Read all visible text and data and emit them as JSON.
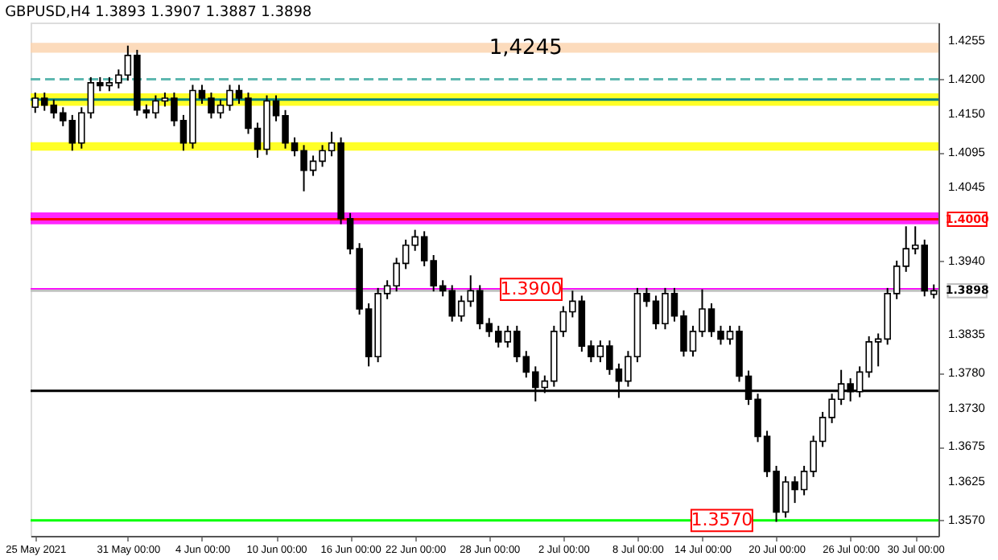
{
  "chart_data": {
    "type": "candlestick",
    "title": "GBPUSD,H4  1.3893 1.3907 1.3887 1.3898",
    "categories": [
      "25 May 2021",
      null,
      null,
      null,
      null,
      null,
      null,
      null,
      null,
      null,
      "31 May 00:00",
      null,
      null,
      null,
      null,
      null,
      null,
      null,
      "4 Jun 00:00",
      null,
      null,
      null,
      null,
      null,
      null,
      null,
      "10 Jun 00:00",
      null,
      null,
      null,
      null,
      null,
      null,
      null,
      "16 Jun 00:00",
      null,
      null,
      null,
      null,
      null,
      null,
      "22 Jun 00:00",
      null,
      null,
      null,
      null,
      null,
      null,
      null,
      "28 Jun 00:00",
      null,
      null,
      null,
      null,
      null,
      null,
      null,
      "2 Jul 00:00",
      null,
      null,
      null,
      null,
      null,
      null,
      null,
      "8 Jul 00:00",
      null,
      null,
      null,
      null,
      null,
      null,
      "14 Jul 00:00",
      null,
      null,
      null,
      null,
      null,
      null,
      null,
      "20 Jul 00:00",
      null,
      null,
      null,
      null,
      null,
      null,
      null,
      "26 Jul 00:00",
      null,
      null,
      null,
      null,
      null,
      null,
      "30 Jul 00:00",
      null,
      null
    ],
    "ohlc": [
      [
        1.416,
        1.4181,
        1.4152,
        1.4173
      ],
      [
        1.4173,
        1.4181,
        1.4155,
        1.4163
      ],
      [
        1.4163,
        1.4171,
        1.4144,
        1.4152
      ],
      [
        1.4152,
        1.416,
        1.4133,
        1.4141
      ],
      [
        1.4141,
        1.4149,
        1.4098,
        1.4109
      ],
      [
        1.4109,
        1.416,
        1.4101,
        1.4152
      ],
      [
        1.4152,
        1.4203,
        1.4144,
        1.4195
      ],
      [
        1.4195,
        1.4203,
        1.4183,
        1.4191
      ],
      [
        1.4191,
        1.4203,
        1.4183,
        1.4195
      ],
      [
        1.4195,
        1.4214,
        1.4187,
        1.4206
      ],
      [
        1.4206,
        1.4248,
        1.4198,
        1.4234
      ],
      [
        1.4234,
        1.4242,
        1.4148,
        1.4156
      ],
      [
        1.4156,
        1.4164,
        1.4144,
        1.4152
      ],
      [
        1.4152,
        1.4177,
        1.4144,
        1.4169
      ],
      [
        1.4169,
        1.4181,
        1.4161,
        1.4173
      ],
      [
        1.4173,
        1.4181,
        1.4133,
        1.4141
      ],
      [
        1.4141,
        1.4149,
        1.4098,
        1.4109
      ],
      [
        1.4109,
        1.4192,
        1.4101,
        1.4184
      ],
      [
        1.4184,
        1.4192,
        1.4165,
        1.4173
      ],
      [
        1.4173,
        1.4181,
        1.4144,
        1.4152
      ],
      [
        1.4152,
        1.4171,
        1.4144,
        1.4163
      ],
      [
        1.4163,
        1.4192,
        1.4155,
        1.4184
      ],
      [
        1.4184,
        1.4192,
        1.4165,
        1.4173
      ],
      [
        1.4173,
        1.4181,
        1.4122,
        1.413
      ],
      [
        1.413,
        1.4138,
        1.4088,
        1.41
      ],
      [
        1.41,
        1.4177,
        1.4092,
        1.4169
      ],
      [
        1.4169,
        1.4177,
        1.414,
        1.4148
      ],
      [
        1.4148,
        1.4156,
        1.4101,
        1.4109
      ],
      [
        1.4109,
        1.4117,
        1.409,
        1.4098
      ],
      [
        1.4098,
        1.4106,
        1.404,
        1.407
      ],
      [
        1.407,
        1.4091,
        1.4062,
        1.4083
      ],
      [
        1.4083,
        1.4106,
        1.4075,
        1.4098
      ],
      [
        1.4098,
        1.4125,
        1.409,
        1.4109
      ],
      [
        1.4109,
        1.4117,
        1.3993,
        1.4001
      ],
      [
        1.4001,
        1.4009,
        1.395,
        1.3958
      ],
      [
        1.3958,
        1.3966,
        1.3864,
        1.3872
      ],
      [
        1.3872,
        1.388,
        1.379,
        1.3804
      ],
      [
        1.3804,
        1.3902,
        1.3796,
        1.3894
      ],
      [
        1.3894,
        1.3913,
        1.3886,
        1.3905
      ],
      [
        1.3905,
        1.3945,
        1.3897,
        1.3937
      ],
      [
        1.3937,
        1.3971,
        1.3929,
        1.3963
      ],
      [
        1.3963,
        1.3985,
        1.3955,
        1.3975
      ],
      [
        1.3975,
        1.3983,
        1.3933,
        1.3941
      ],
      [
        1.3941,
        1.3949,
        1.3897,
        1.3905
      ],
      [
        1.3905,
        1.3913,
        1.389,
        1.3898
      ],
      [
        1.3898,
        1.3906,
        1.3854,
        1.3862
      ],
      [
        1.3862,
        1.3891,
        1.3854,
        1.3883
      ],
      [
        1.3883,
        1.392,
        1.3875,
        1.3898
      ],
      [
        1.3898,
        1.3906,
        1.3843,
        1.3851
      ],
      [
        1.3851,
        1.3859,
        1.3832,
        1.384
      ],
      [
        1.384,
        1.3848,
        1.3817,
        1.3825
      ],
      [
        1.3825,
        1.3848,
        1.3817,
        1.384
      ],
      [
        1.384,
        1.3848,
        1.3796,
        1.3804
      ],
      [
        1.3804,
        1.3812,
        1.3774,
        1.3782
      ],
      [
        1.3782,
        1.379,
        1.374,
        1.376
      ],
      [
        1.376,
        1.3777,
        1.3752,
        1.3769
      ],
      [
        1.3769,
        1.3848,
        1.3761,
        1.384
      ],
      [
        1.384,
        1.3876,
        1.3832,
        1.3868
      ],
      [
        1.3868,
        1.3898,
        1.386,
        1.3883
      ],
      [
        1.3883,
        1.3891,
        1.3811,
        1.3819
      ],
      [
        1.3819,
        1.3827,
        1.3796,
        1.3804
      ],
      [
        1.3804,
        1.3827,
        1.3796,
        1.3819
      ],
      [
        1.3819,
        1.3827,
        1.3778,
        1.3786
      ],
      [
        1.3786,
        1.3794,
        1.3745,
        1.3769
      ],
      [
        1.3769,
        1.3812,
        1.3761,
        1.3804
      ],
      [
        1.3804,
        1.3902,
        1.3796,
        1.3894
      ],
      [
        1.3894,
        1.3902,
        1.3875,
        1.3883
      ],
      [
        1.3883,
        1.3891,
        1.3843,
        1.3851
      ],
      [
        1.3851,
        1.3902,
        1.3843,
        1.3894
      ],
      [
        1.3894,
        1.3902,
        1.3854,
        1.3862
      ],
      [
        1.3862,
        1.387,
        1.3804,
        1.3812
      ],
      [
        1.3812,
        1.3848,
        1.3804,
        1.384
      ],
      [
        1.384,
        1.39,
        1.3832,
        1.3872
      ],
      [
        1.3872,
        1.388,
        1.3832,
        1.384
      ],
      [
        1.384,
        1.3848,
        1.3821,
        1.3829
      ],
      [
        1.3829,
        1.3848,
        1.3821,
        1.384
      ],
      [
        1.384,
        1.3848,
        1.3768,
        1.3776
      ],
      [
        1.3776,
        1.3784,
        1.3735,
        1.3743
      ],
      [
        1.3743,
        1.3751,
        1.3682,
        1.369
      ],
      [
        1.369,
        1.3698,
        1.3632,
        1.364
      ],
      [
        1.364,
        1.3648,
        1.3568,
        1.3582
      ],
      [
        1.3582,
        1.3633,
        1.3574,
        1.3625
      ],
      [
        1.3625,
        1.3633,
        1.3595,
        1.3614
      ],
      [
        1.3614,
        1.3648,
        1.3606,
        1.364
      ],
      [
        1.364,
        1.3691,
        1.3632,
        1.3683
      ],
      [
        1.3683,
        1.3725,
        1.3675,
        1.3717
      ],
      [
        1.3717,
        1.3751,
        1.3709,
        1.3743
      ],
      [
        1.3743,
        1.3785,
        1.3735,
        1.3765
      ],
      [
        1.3765,
        1.3773,
        1.374,
        1.3754
      ],
      [
        1.3754,
        1.379,
        1.3746,
        1.3782
      ],
      [
        1.3782,
        1.3833,
        1.3774,
        1.3825
      ],
      [
        1.3825,
        1.3837,
        1.379,
        1.3829
      ],
      [
        1.3829,
        1.3902,
        1.3821,
        1.3894
      ],
      [
        1.3894,
        1.3941,
        1.3886,
        1.3933
      ],
      [
        1.3933,
        1.399,
        1.3925,
        1.3958
      ],
      [
        1.3958,
        1.399,
        1.395,
        1.3963
      ],
      [
        1.3963,
        1.3971,
        1.389,
        1.3898
      ],
      [
        1.3893,
        1.3907,
        1.3887,
        1.3898
      ]
    ],
    "ylim": [
      1.3548,
      1.4281
    ],
    "yticks": [
      1.4255,
      {
        "value": 1.42,
        "label": "1.4200"
      },
      {
        "value": 1.415,
        "label": "1.4150"
      },
      1.4095,
      1.4045,
      {
        "value": 1.394,
        "label": "1.3940"
      },
      1.3835,
      {
        "value": 1.378,
        "label": "1.3780"
      },
      {
        "value": 1.373,
        "label": "1.3730"
      },
      1.3675,
      1.3625,
      {
        "value": 1.357,
        "label": "1.3570"
      }
    ],
    "bands": [
      {
        "axis": "y",
        "from": 1.4238,
        "to": 1.4252,
        "label": "1,4245",
        "color": "#fcd5b0"
      },
      {
        "axis": "y",
        "from": 1.4162,
        "to": 1.418,
        "color": "#ffff00"
      },
      {
        "axis": "y",
        "from": 1.4098,
        "to": 1.411,
        "color": "#ffff00"
      },
      {
        "axis": "y",
        "from": 1.3993,
        "to": 1.401,
        "color": "#ff00ff"
      }
    ],
    "ref_lines": [
      {
        "axis": "y",
        "value": 1.42,
        "color": "#5fb8b0",
        "line_style": "dashed"
      },
      {
        "axis": "y",
        "value": 1.4171,
        "color": "#008080"
      },
      {
        "axis": "y",
        "value": 1.4,
        "label": "1.4000",
        "color": "#ff0000"
      },
      {
        "axis": "y",
        "value": 1.39,
        "color": "#ff00ff"
      },
      {
        "axis": "y",
        "value": 1.3898,
        "label": "1.3898",
        "color": "#c0c0c0"
      },
      {
        "axis": "y",
        "value": 1.3755,
        "color": "#000000"
      },
      {
        "axis": "y",
        "value": 1.357,
        "color": "#00ff00"
      }
    ],
    "annotations": [
      {
        "text": "1.3900",
        "y": 1.39
      },
      {
        "text": "1.3570",
        "y": 1.357
      }
    ]
  }
}
